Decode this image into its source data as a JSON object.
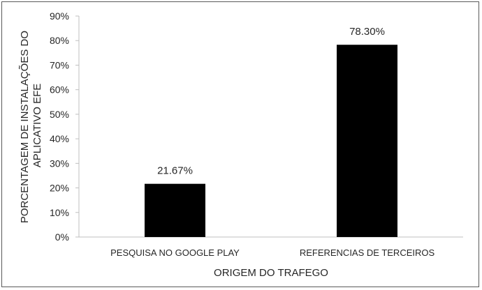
{
  "chart_data": {
    "type": "bar",
    "categories": [
      "PESQUISA NO GOOGLE PLAY",
      "REFERENCIAS DE TERCEIROS"
    ],
    "values": [
      21.67,
      78.3
    ],
    "data_labels": [
      "21.67%",
      "78.30%"
    ],
    "title": "",
    "xlabel": "ORIGEM DO TRAFEGO",
    "ylabel_lines": [
      "PORCENTAGEM DE INSTALAÇÕES DO",
      "APLICATIVO EFE"
    ],
    "ylim": [
      0,
      90
    ],
    "yticks": [
      "0%",
      "10%",
      "20%",
      "30%",
      "40%",
      "50%",
      "60%",
      "70%",
      "80%",
      "90%"
    ],
    "grid": false,
    "legend": "none",
    "bar_color": "#000000",
    "axis_color": "#bfbfbf"
  }
}
